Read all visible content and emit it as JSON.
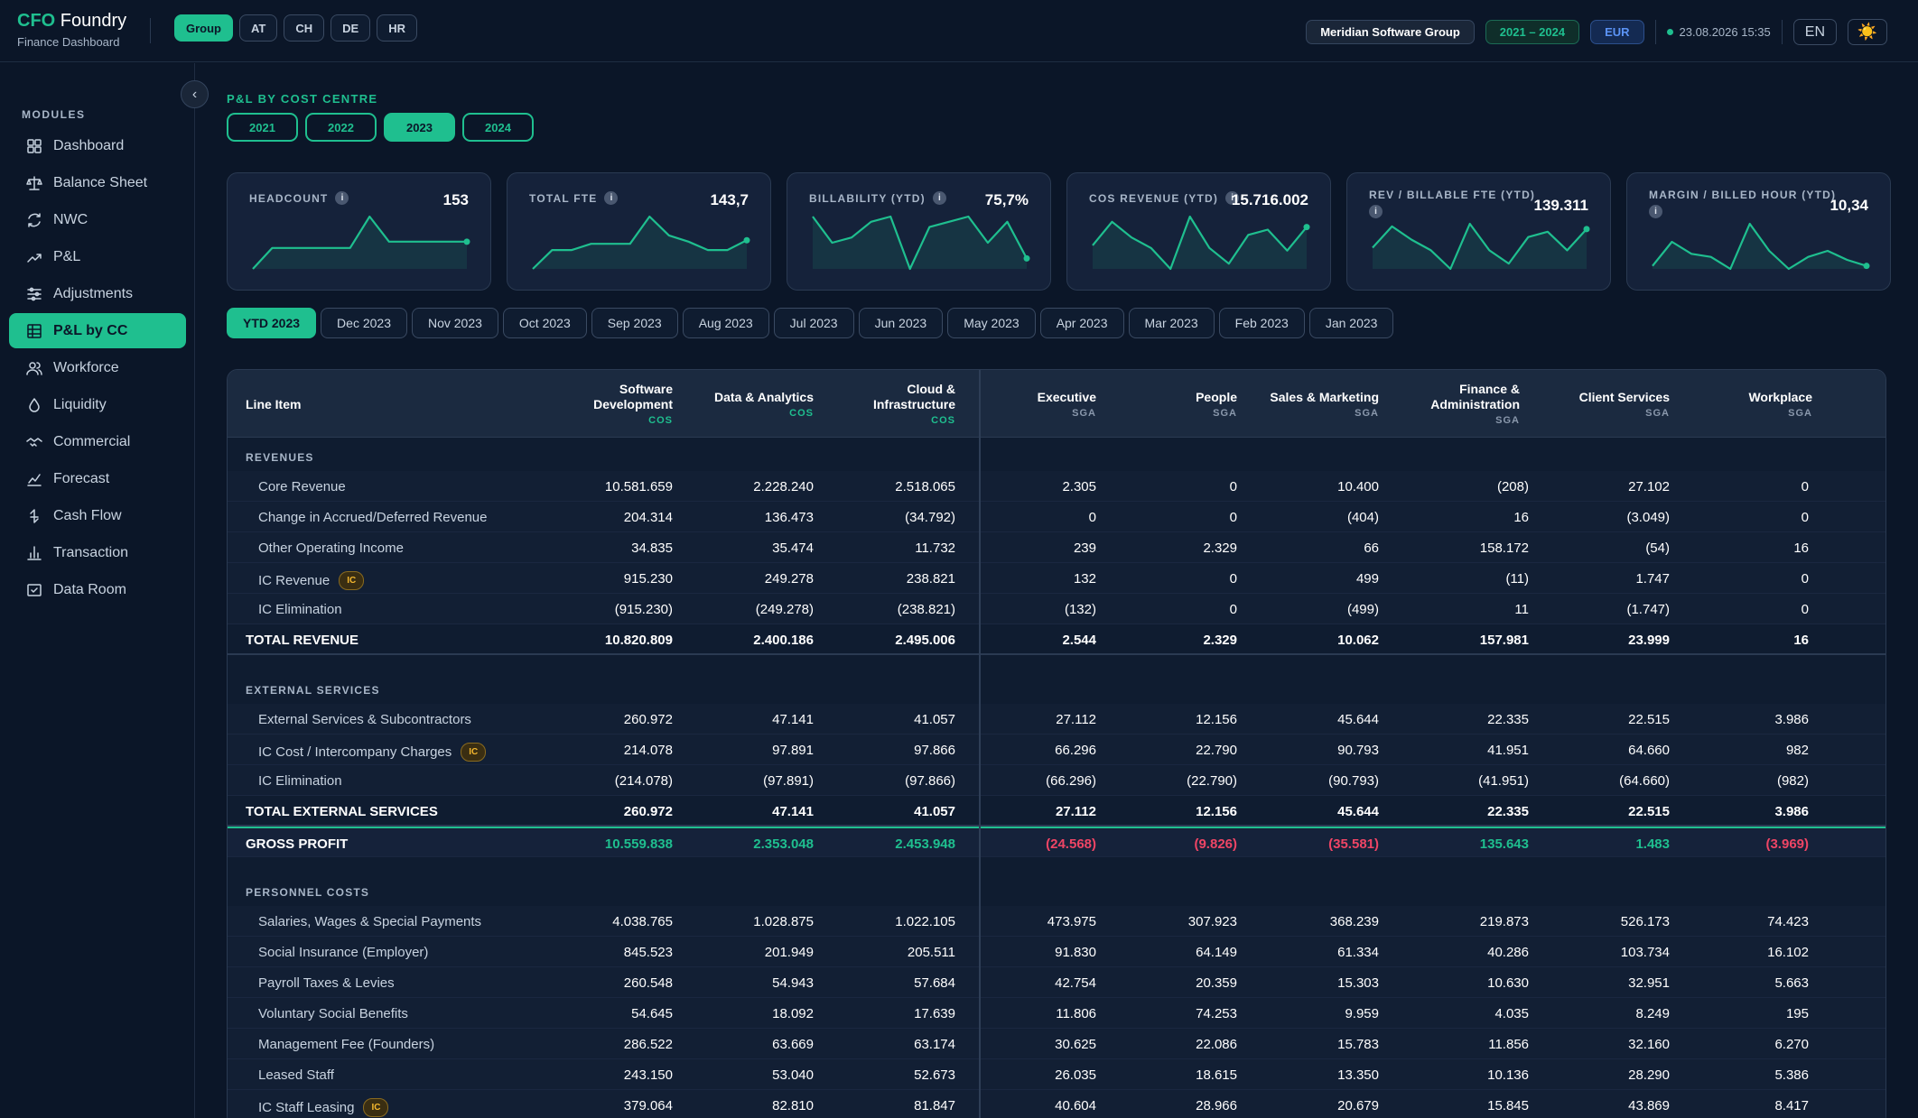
{
  "app": {
    "brand_accent": "CFO",
    "brand_rest": " Foundry",
    "subtitle": "Finance Dashboard"
  },
  "entity_tabs": [
    {
      "label": "Group",
      "active": true
    },
    {
      "label": "AT",
      "active": false
    },
    {
      "label": "CH",
      "active": false
    },
    {
      "label": "DE",
      "active": false
    },
    {
      "label": "HR",
      "active": false
    }
  ],
  "header": {
    "company": "Meridian Software Group",
    "range": "2021 – 2024",
    "currency": "EUR",
    "timestamp": "23.08.2026 15:35",
    "language": "EN",
    "theme_icon": "☀️"
  },
  "sidebar": {
    "section_label": "MODULES",
    "collapse_icon": "‹",
    "items": [
      {
        "label": "Dashboard",
        "icon": "dashboard-icon"
      },
      {
        "label": "Balance Sheet",
        "icon": "scale-icon"
      },
      {
        "label": "NWC",
        "icon": "refresh-icon"
      },
      {
        "label": "P&L",
        "icon": "trend-icon"
      },
      {
        "label": "Adjustments",
        "icon": "sliders-icon"
      },
      {
        "label": "P&L by CC",
        "icon": "table-icon",
        "active": true
      },
      {
        "label": "Workforce",
        "icon": "users-icon"
      },
      {
        "label": "Liquidity",
        "icon": "droplet-icon"
      },
      {
        "label": "Commercial",
        "icon": "handshake-icon"
      },
      {
        "label": "Forecast",
        "icon": "chart-line-icon"
      },
      {
        "label": "Cash Flow",
        "icon": "arrows-icon"
      },
      {
        "label": "Transaction",
        "icon": "landmark-icon"
      },
      {
        "label": "Data Room",
        "icon": "folder-check-icon"
      }
    ]
  },
  "main": {
    "section_title": "P&L BY COST CENTRE",
    "years": [
      {
        "label": "2021",
        "active": false
      },
      {
        "label": "2022",
        "active": false
      },
      {
        "label": "2023",
        "active": true
      },
      {
        "label": "2024",
        "active": false
      }
    ],
    "info_icon": "i",
    "kpis": [
      {
        "label": "HEADCOUNT",
        "value": "153",
        "trend": [
          140,
          150,
          150,
          150,
          150,
          150,
          165,
          153,
          153,
          153,
          153,
          153
        ]
      },
      {
        "label": "TOTAL FTE",
        "value": "143,7",
        "trend": [
          130,
          139,
          139,
          142,
          142,
          142,
          155,
          146,
          143,
          139,
          139,
          143.7
        ]
      },
      {
        "label": "BILLABILITY (YTD)",
        "value": "75,7%",
        "trend": [
          79,
          74,
          75,
          78,
          79,
          69,
          77,
          78,
          79,
          74,
          78,
          71
        ]
      },
      {
        "label": "COS REVENUE (YTD)",
        "value": "15.716.002",
        "trend": [
          1.5,
          2.4,
          1.8,
          1.4,
          0.6,
          2.6,
          1.4,
          0.8,
          1.9,
          2.1,
          1.3,
          2.2
        ]
      },
      {
        "label": "REV / BILLABLE FTE (YTD)",
        "value": "139.311",
        "trend": [
          13,
          21,
          16,
          12,
          5,
          22,
          12,
          7,
          17,
          19,
          12,
          20
        ]
      },
      {
        "label": "MARGIN / BILLED HOUR (YTD)",
        "value": "10,34",
        "trend": [
          5,
          13,
          9,
          8,
          4,
          19,
          10,
          4,
          8,
          10,
          7,
          5
        ]
      }
    ],
    "periods": [
      {
        "label": "YTD 2023",
        "active": true
      },
      {
        "label": "Dec 2023"
      },
      {
        "label": "Nov 2023"
      },
      {
        "label": "Oct 2023"
      },
      {
        "label": "Sep 2023"
      },
      {
        "label": "Aug 2023"
      },
      {
        "label": "Jul 2023"
      },
      {
        "label": "Jun 2023"
      },
      {
        "label": "May 2023"
      },
      {
        "label": "Apr 2023"
      },
      {
        "label": "Mar 2023"
      },
      {
        "label": "Feb 2023"
      },
      {
        "label": "Jan 2023"
      }
    ]
  },
  "table": {
    "first_header": "Line Item",
    "ic_badge": "IC",
    "columns": [
      {
        "name": "Software Development",
        "type": "COS"
      },
      {
        "name": "Data & Analytics",
        "type": "COS"
      },
      {
        "name": "Cloud & Infrastructure",
        "type": "COS"
      },
      {
        "name": "Executive",
        "type": "SGA"
      },
      {
        "name": "People",
        "type": "SGA"
      },
      {
        "name": "Sales & Marketing",
        "type": "SGA"
      },
      {
        "name": "Finance & Administration",
        "type": "SGA"
      },
      {
        "name": "Client Services",
        "type": "SGA"
      },
      {
        "name": "Workplace",
        "type": "SGA"
      }
    ],
    "rows": [
      {
        "kind": "section",
        "label": "REVENUES"
      },
      {
        "kind": "item",
        "label": "Core Revenue",
        "values": [
          "10.581.659",
          "2.228.240",
          "2.518.065",
          "2.305",
          "0",
          "10.400",
          "(208)",
          "27.102",
          "0"
        ]
      },
      {
        "kind": "item",
        "label": "Change in Accrued/Deferred Revenue",
        "values": [
          "204.314",
          "136.473",
          "(34.792)",
          "0",
          "0",
          "(404)",
          "16",
          "(3.049)",
          "0"
        ]
      },
      {
        "kind": "item",
        "label": "Other Operating Income",
        "values": [
          "34.835",
          "35.474",
          "11.732",
          "239",
          "2.329",
          "66",
          "158.172",
          "(54)",
          "16"
        ]
      },
      {
        "kind": "item",
        "label": "IC Revenue",
        "ic": true,
        "values": [
          "915.230",
          "249.278",
          "238.821",
          "132",
          "0",
          "499",
          "(11)",
          "1.747",
          "0"
        ]
      },
      {
        "kind": "item",
        "label": "IC Elimination",
        "values": [
          "(915.230)",
          "(249.278)",
          "(238.821)",
          "(132)",
          "0",
          "(499)",
          "11",
          "(1.747)",
          "0"
        ]
      },
      {
        "kind": "total",
        "label": "TOTAL REVENUE",
        "values": [
          "10.820.809",
          "2.400.186",
          "2.495.006",
          "2.544",
          "2.329",
          "10.062",
          "157.981",
          "23.999",
          "16"
        ]
      },
      {
        "kind": "spacer"
      },
      {
        "kind": "section",
        "label": "EXTERNAL SERVICES"
      },
      {
        "kind": "item",
        "label": "External Services & Subcontractors",
        "values": [
          "260.972",
          "47.141",
          "41.057",
          "27.112",
          "12.156",
          "45.644",
          "22.335",
          "22.515",
          "3.986"
        ]
      },
      {
        "kind": "item",
        "label": "IC Cost / Intercompany Charges",
        "ic": true,
        "values": [
          "214.078",
          "97.891",
          "97.866",
          "66.296",
          "22.790",
          "90.793",
          "41.951",
          "64.660",
          "982"
        ]
      },
      {
        "kind": "item",
        "label": "IC Elimination",
        "values": [
          "(214.078)",
          "(97.891)",
          "(97.866)",
          "(66.296)",
          "(22.790)",
          "(90.793)",
          "(41.951)",
          "(64.660)",
          "(982)"
        ]
      },
      {
        "kind": "total",
        "label": "TOTAL EXTERNAL SERVICES",
        "values": [
          "260.972",
          "47.141",
          "41.057",
          "27.112",
          "12.156",
          "45.644",
          "22.335",
          "22.515",
          "3.986"
        ]
      },
      {
        "kind": "gross",
        "label": "GROSS PROFIT",
        "values": [
          "10.559.838",
          "2.353.048",
          "2.453.948",
          "(24.568)",
          "(9.826)",
          "(35.581)",
          "135.643",
          "1.483",
          "(3.969)"
        ]
      },
      {
        "kind": "spacer"
      },
      {
        "kind": "section",
        "label": "PERSONNEL COSTS"
      },
      {
        "kind": "item",
        "label": "Salaries, Wages & Special Payments",
        "values": [
          "4.038.765",
          "1.028.875",
          "1.022.105",
          "473.975",
          "307.923",
          "368.239",
          "219.873",
          "526.173",
          "74.423"
        ]
      },
      {
        "kind": "item",
        "label": "Social Insurance (Employer)",
        "values": [
          "845.523",
          "201.949",
          "205.511",
          "91.830",
          "64.149",
          "61.334",
          "40.286",
          "103.734",
          "16.102"
        ]
      },
      {
        "kind": "item",
        "label": "Payroll Taxes & Levies",
        "values": [
          "260.548",
          "54.943",
          "57.684",
          "42.754",
          "20.359",
          "15.303",
          "10.630",
          "32.951",
          "5.663"
        ]
      },
      {
        "kind": "item",
        "label": "Voluntary Social Benefits",
        "values": [
          "54.645",
          "18.092",
          "17.639",
          "11.806",
          "74.253",
          "9.959",
          "4.035",
          "8.249",
          "195"
        ]
      },
      {
        "kind": "item",
        "label": "Management Fee (Founders)",
        "values": [
          "286.522",
          "63.669",
          "63.174",
          "30.625",
          "22.086",
          "15.783",
          "11.856",
          "32.160",
          "6.270"
        ]
      },
      {
        "kind": "item",
        "label": "Leased Staff",
        "values": [
          "243.150",
          "53.040",
          "52.673",
          "26.035",
          "18.615",
          "13.350",
          "10.136",
          "28.290",
          "5.386"
        ]
      },
      {
        "kind": "item",
        "label": "IC Staff Leasing",
        "ic": true,
        "values": [
          "379.064",
          "82.810",
          "81.847",
          "40.604",
          "28.966",
          "20.679",
          "15.845",
          "43.869",
          "8.417"
        ]
      }
    ]
  },
  "colors": {
    "accent": "#1fbf8f",
    "negative": "#ef4565",
    "background": "#0b1628"
  }
}
